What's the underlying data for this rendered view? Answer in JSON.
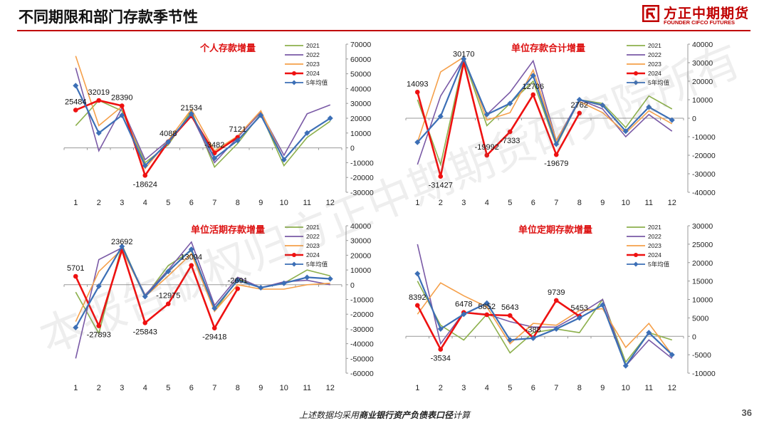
{
  "page": {
    "title": "不同期限和部门存款季节性",
    "logo_cn": "方正中期期货",
    "logo_en": "FOUNDER CIFCO FUTURES",
    "footer_prefix": "上述数据均采用",
    "footer_bold": "商业银行资产负债表口径",
    "footer_suffix": "计算",
    "page_number": "36",
    "watermark": "本报告版权归方正中期期货研究院所有"
  },
  "colors": {
    "2021": "#8db04d",
    "2022": "#7a5aa6",
    "2023": "#f5a04a",
    "2024": "#ee1111",
    "avg": "#3c6fb6",
    "title_red": "#dd1111",
    "brand": "#c00000"
  },
  "chart_data": [
    {
      "type": "line",
      "title": "个人存款增量",
      "categories": [
        "1",
        "2",
        "3",
        "4",
        "5",
        "6",
        "7",
        "8",
        "9",
        "10",
        "11",
        "12"
      ],
      "ylim": [
        -30000,
        70000
      ],
      "yticks": [
        -30000,
        -20000,
        -10000,
        0,
        10000,
        20000,
        30000,
        40000,
        50000,
        60000,
        70000
      ],
      "legend": [
        "2021",
        "2022",
        "2023",
        "2024",
        "5年均值"
      ],
      "series": [
        {
          "name": "2021",
          "values": [
            15000,
            32000,
            25000,
            -10000,
            2000,
            25000,
            -13000,
            3000,
            23000,
            -12000,
            7000,
            18000
          ]
        },
        {
          "name": "2022",
          "values": [
            54000,
            -2000,
            27000,
            -8000,
            5000,
            22000,
            -10000,
            7000,
            24000,
            -5000,
            23000,
            29000
          ]
        },
        {
          "name": "2023",
          "values": [
            62000,
            15000,
            28000,
            -14000,
            5000,
            26000,
            -2000,
            8000,
            25000,
            -8000,
            10000,
            20000
          ]
        },
        {
          "name": "2024",
          "values": [
            25484,
            32019,
            28390,
            -18624,
            4088,
            21534,
            -3482,
            7121,
            null,
            null,
            null,
            null
          ]
        },
        {
          "name": "5年均值",
          "values": [
            42000,
            10000,
            22000,
            -12000,
            4000,
            23000,
            -7000,
            5000,
            22000,
            -8000,
            10000,
            20000
          ]
        }
      ],
      "data_labels": [
        "25484",
        "32019",
        "28390",
        "-18624",
        "4088",
        "21534",
        "-3482",
        "7121"
      ]
    },
    {
      "type": "line",
      "title": "单位存款合计增量",
      "categories": [
        "1",
        "2",
        "3",
        "4",
        "5",
        "6",
        "7",
        "8",
        "9",
        "10",
        "11",
        "12"
      ],
      "ylim": [
        -40000,
        40000
      ],
      "yticks": [
        -40000,
        -30000,
        -20000,
        -10000,
        0,
        10000,
        20000,
        30000,
        40000
      ],
      "legend": [
        "2021",
        "2022",
        "2023",
        "2024",
        "5年均值"
      ],
      "series": [
        {
          "name": "2021",
          "values": [
            10000,
            -25000,
            32000,
            -4000,
            8000,
            20000,
            -15000,
            10000,
            8000,
            -5000,
            12000,
            5000
          ]
        },
        {
          "name": "2022",
          "values": [
            -25000,
            12000,
            32000,
            2000,
            14000,
            31000,
            -12000,
            10000,
            5000,
            -10000,
            2000,
            -7000
          ]
        },
        {
          "name": "2023",
          "values": [
            -13000,
            25000,
            33000,
            -1000,
            3000,
            26000,
            -12000,
            9000,
            3000,
            -8000,
            4000,
            -3000
          ]
        },
        {
          "name": "2024",
          "values": [
            14093,
            -31427,
            30170,
            -19992,
            -7333,
            12706,
            -19679,
            2762,
            null,
            null,
            null,
            null
          ]
        },
        {
          "name": "5年均值",
          "values": [
            -13000,
            1000,
            32000,
            2000,
            8000,
            23000,
            -14000,
            10000,
            7000,
            -7000,
            6000,
            -1000
          ]
        }
      ],
      "data_labels": [
        "14093",
        "-31427",
        "30170",
        "-19992",
        "-7333",
        "12706",
        "-19679",
        "2762"
      ]
    },
    {
      "type": "line",
      "title": "单位活期存款增量",
      "categories": [
        "1",
        "2",
        "3",
        "4",
        "5",
        "6",
        "7",
        "8",
        "9",
        "10",
        "11",
        "12"
      ],
      "ylim": [
        -60000,
        40000
      ],
      "yticks": [
        -60000,
        -50000,
        -40000,
        -30000,
        -20000,
        -10000,
        0,
        10000,
        20000,
        30000,
        40000
      ],
      "legend": [
        "2021",
        "2022",
        "2023",
        "2024",
        "5年均值"
      ],
      "series": [
        {
          "name": "2021",
          "values": [
            -5000,
            -33000,
            27000,
            -8000,
            13000,
            23000,
            -18000,
            4000,
            -2000,
            1000,
            10000,
            6000
          ]
        },
        {
          "name": "2022",
          "values": [
            -50000,
            17000,
            25000,
            -7000,
            10000,
            29000,
            -14000,
            5000,
            -2000,
            2000,
            3000,
            0
          ]
        },
        {
          "name": "2023",
          "values": [
            -25000,
            9000,
            24000,
            -8000,
            6000,
            21000,
            -18000,
            0,
            -3000,
            -3000,
            0,
            1000
          ]
        },
        {
          "name": "2024",
          "values": [
            5701,
            -27893,
            23692,
            -25843,
            -12975,
            13094,
            -29418,
            -2691,
            null,
            null,
            null,
            null
          ]
        },
        {
          "name": "5年均值",
          "values": [
            -29000,
            -1000,
            26000,
            -8000,
            9000,
            24000,
            -16000,
            3000,
            -2000,
            1000,
            5000,
            4000
          ]
        }
      ],
      "data_labels": [
        "5701",
        "-27893",
        "23692",
        "-25843",
        "-12975",
        "13094",
        "-29418",
        "-2691"
      ]
    },
    {
      "type": "line",
      "title": "单位定期存款增量",
      "categories": [
        "1",
        "2",
        "3",
        "4",
        "5",
        "6",
        "7",
        "8",
        "9",
        "10",
        "11",
        "12"
      ],
      "ylim": [
        -10000,
        30000
      ],
      "yticks": [
        -10000,
        -5000,
        0,
        5000,
        10000,
        15000,
        20000,
        25000,
        30000
      ],
      "legend": [
        "2021",
        "2022",
        "2023",
        "2024",
        "5年均值"
      ],
      "series": [
        {
          "name": "2021",
          "values": [
            15000,
            3000,
            -1000,
            6000,
            -4500,
            1000,
            2000,
            1000,
            10000,
            -7000,
            1000,
            -1000
          ]
        },
        {
          "name": "2022",
          "values": [
            25000,
            -2000,
            6500,
            6000,
            4000,
            2500,
            2500,
            6000,
            10000,
            -8000,
            -1000,
            -6000
          ]
        },
        {
          "name": "2023",
          "values": [
            6000,
            14500,
            11000,
            8000,
            -2000,
            3500,
            3000,
            7000,
            7500,
            -3000,
            3500,
            -5000
          ]
        },
        {
          "name": "2024",
          "values": [
            8392,
            -3534,
            6478,
            5852,
            5643,
            -388,
            9739,
            5453,
            null,
            null,
            null,
            null
          ]
        },
        {
          "name": "5年均值",
          "values": [
            17000,
            2000,
            6000,
            9000,
            -1000,
            -500,
            2000,
            5000,
            8500,
            -8000,
            1000,
            -5000
          ]
        }
      ],
      "data_labels": [
        "8392",
        "-3534",
        "6478",
        "5852",
        "5643",
        "-388",
        "9739",
        "5453"
      ]
    }
  ]
}
